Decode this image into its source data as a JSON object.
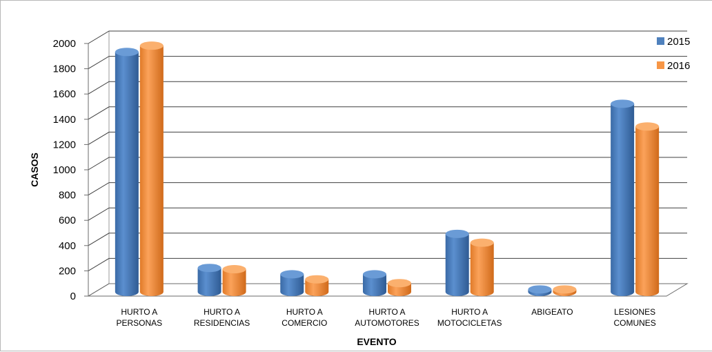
{
  "chart_data": {
    "type": "bar",
    "title": "",
    "xlabel": "EVENTO",
    "ylabel": "CASOS",
    "ylim": [
      0,
      2000
    ],
    "yticks": [
      0,
      200,
      400,
      600,
      800,
      1000,
      1200,
      1400,
      1600,
      1800,
      2000
    ],
    "grid": true,
    "legend_position": "top-right",
    "categories": [
      [
        "HURTO A",
        "PERSONAS"
      ],
      [
        "HURTO A",
        "RESIDENCIAS"
      ],
      [
        "HURTO A",
        "COMERCIO"
      ],
      [
        "HURTO A",
        "AUTOMOTORES"
      ],
      [
        "HURTO A",
        "MOTOCICLETAS"
      ],
      [
        "ABIGEATO"
      ],
      [
        "LESIONES",
        "COMUNES"
      ]
    ],
    "series": [
      {
        "name": "2015",
        "color": "#4f81bd",
        "values": [
          1900,
          190,
          140,
          140,
          460,
          20,
          1490
        ]
      },
      {
        "name": "2016",
        "color": "#f79646",
        "values": [
          1950,
          180,
          100,
          70,
          390,
          20,
          1310
        ]
      }
    ]
  }
}
